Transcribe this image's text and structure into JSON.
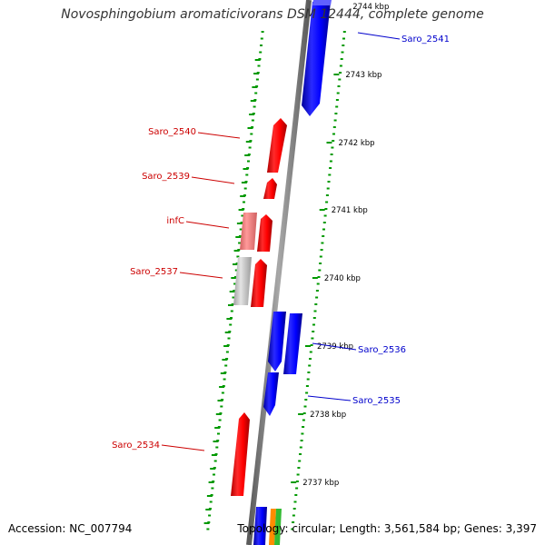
{
  "title": "Novosphingobium aromaticivorans DSM 12444, complete genome",
  "footer": {
    "accession": "Accession: NC_007794",
    "summary": "Topology: circular; Length: 3,561,584 bp; Genes: 3,397"
  },
  "colors": {
    "forward_gene": "#ff0000",
    "reverse_gene": "#0000ff",
    "rna_gene": "#ff8080",
    "pseudo_gene": "#c0c0c0",
    "backbone": "#808080",
    "scale_dots": "#009900",
    "forward_label": "#cc0000",
    "reverse_label": "#0000cc"
  },
  "scale_ticks": [
    {
      "label": "2744 kbp",
      "kbp": 2744
    },
    {
      "label": "2743 kbp",
      "kbp": 2743
    },
    {
      "label": "2742 kbp",
      "kbp": 2742
    },
    {
      "label": "2741 kbp",
      "kbp": 2741
    },
    {
      "label": "2740 kbp",
      "kbp": 2740
    },
    {
      "label": "2739 kbp",
      "kbp": 2739
    },
    {
      "label": "2738 kbp",
      "kbp": 2738
    },
    {
      "label": "2737 kbp",
      "kbp": 2737
    }
  ],
  "gene_labels": [
    {
      "text": "Saro_2541",
      "strand": "reverse"
    },
    {
      "text": "Saro_2540",
      "strand": "forward"
    },
    {
      "text": "Saro_2539",
      "strand": "forward"
    },
    {
      "text": "infC",
      "strand": "forward"
    },
    {
      "text": "Saro_2537",
      "strand": "forward"
    },
    {
      "text": "Saro_2536",
      "strand": "reverse"
    },
    {
      "text": "Saro_2535",
      "strand": "reverse"
    },
    {
      "text": "Saro_2534",
      "strand": "forward"
    }
  ]
}
